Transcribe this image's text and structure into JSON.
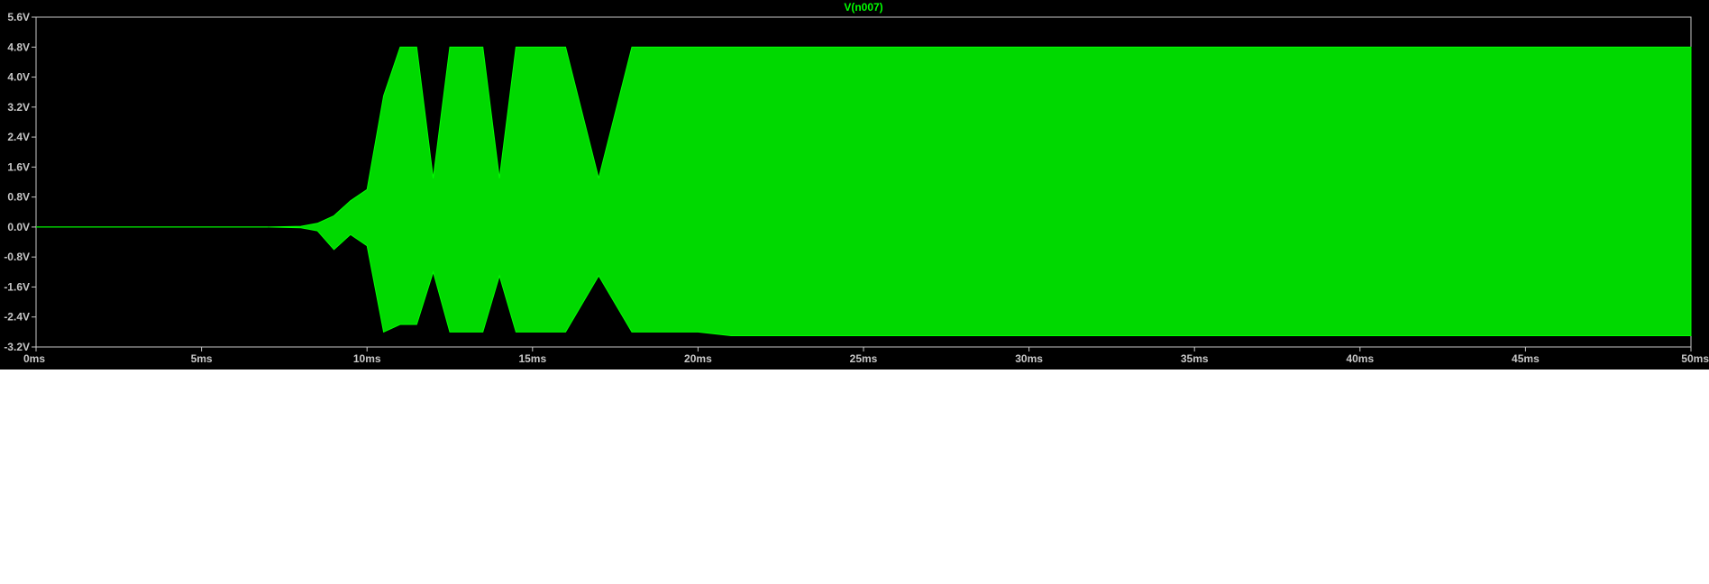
{
  "chart_data": {
    "type": "line",
    "title": "V(n007)",
    "xlabel": "",
    "ylabel": "",
    "x_unit": "ms",
    "y_unit": "V",
    "xlim": [
      0,
      50
    ],
    "ylim": [
      -3.2,
      5.6
    ],
    "x_ticks": [
      "0ms",
      "5ms",
      "10ms",
      "15ms",
      "20ms",
      "25ms",
      "30ms",
      "35ms",
      "40ms",
      "45ms",
      "50ms"
    ],
    "y_ticks": [
      "5.6V",
      "4.8V",
      "4.0V",
      "3.2V",
      "2.4V",
      "1.6V",
      "0.8V",
      "0.0V",
      "-0.8V",
      "-1.6V",
      "-2.4V",
      "-3.2V"
    ],
    "grid": false,
    "colors": {
      "trace": "#00ff00",
      "background": "#000000",
      "axis": "#c8c8c8"
    },
    "series": [
      {
        "name": "V(n007)",
        "x": [
          0,
          7,
          8,
          8.5,
          9,
          9.5,
          10,
          10.5,
          11,
          11.5,
          12,
          12.5,
          13,
          13.5,
          14,
          14.5,
          15,
          16,
          17,
          18,
          19,
          20,
          21,
          22,
          25,
          30,
          35,
          40,
          45,
          50
        ],
        "envelope_max": [
          0,
          0,
          0.02,
          0.1,
          0.3,
          0.7,
          1.0,
          3.5,
          4.8,
          4.8,
          1.3,
          4.8,
          4.8,
          4.8,
          1.3,
          4.8,
          4.8,
          4.8,
          1.3,
          4.8,
          4.8,
          4.8,
          4.8,
          4.8,
          4.8,
          4.8,
          4.8,
          4.8,
          4.8,
          4.8
        ],
        "envelope_min": [
          0,
          0,
          -0.02,
          -0.1,
          -0.6,
          -0.2,
          -0.5,
          -2.8,
          -2.6,
          -2.6,
          -1.2,
          -2.8,
          -2.8,
          -2.8,
          -1.3,
          -2.8,
          -2.8,
          -2.8,
          -1.3,
          -2.8,
          -2.8,
          -2.8,
          -2.9,
          -2.9,
          -2.9,
          -2.9,
          -2.9,
          -2.9,
          -2.9,
          -2.9
        ]
      }
    ]
  }
}
